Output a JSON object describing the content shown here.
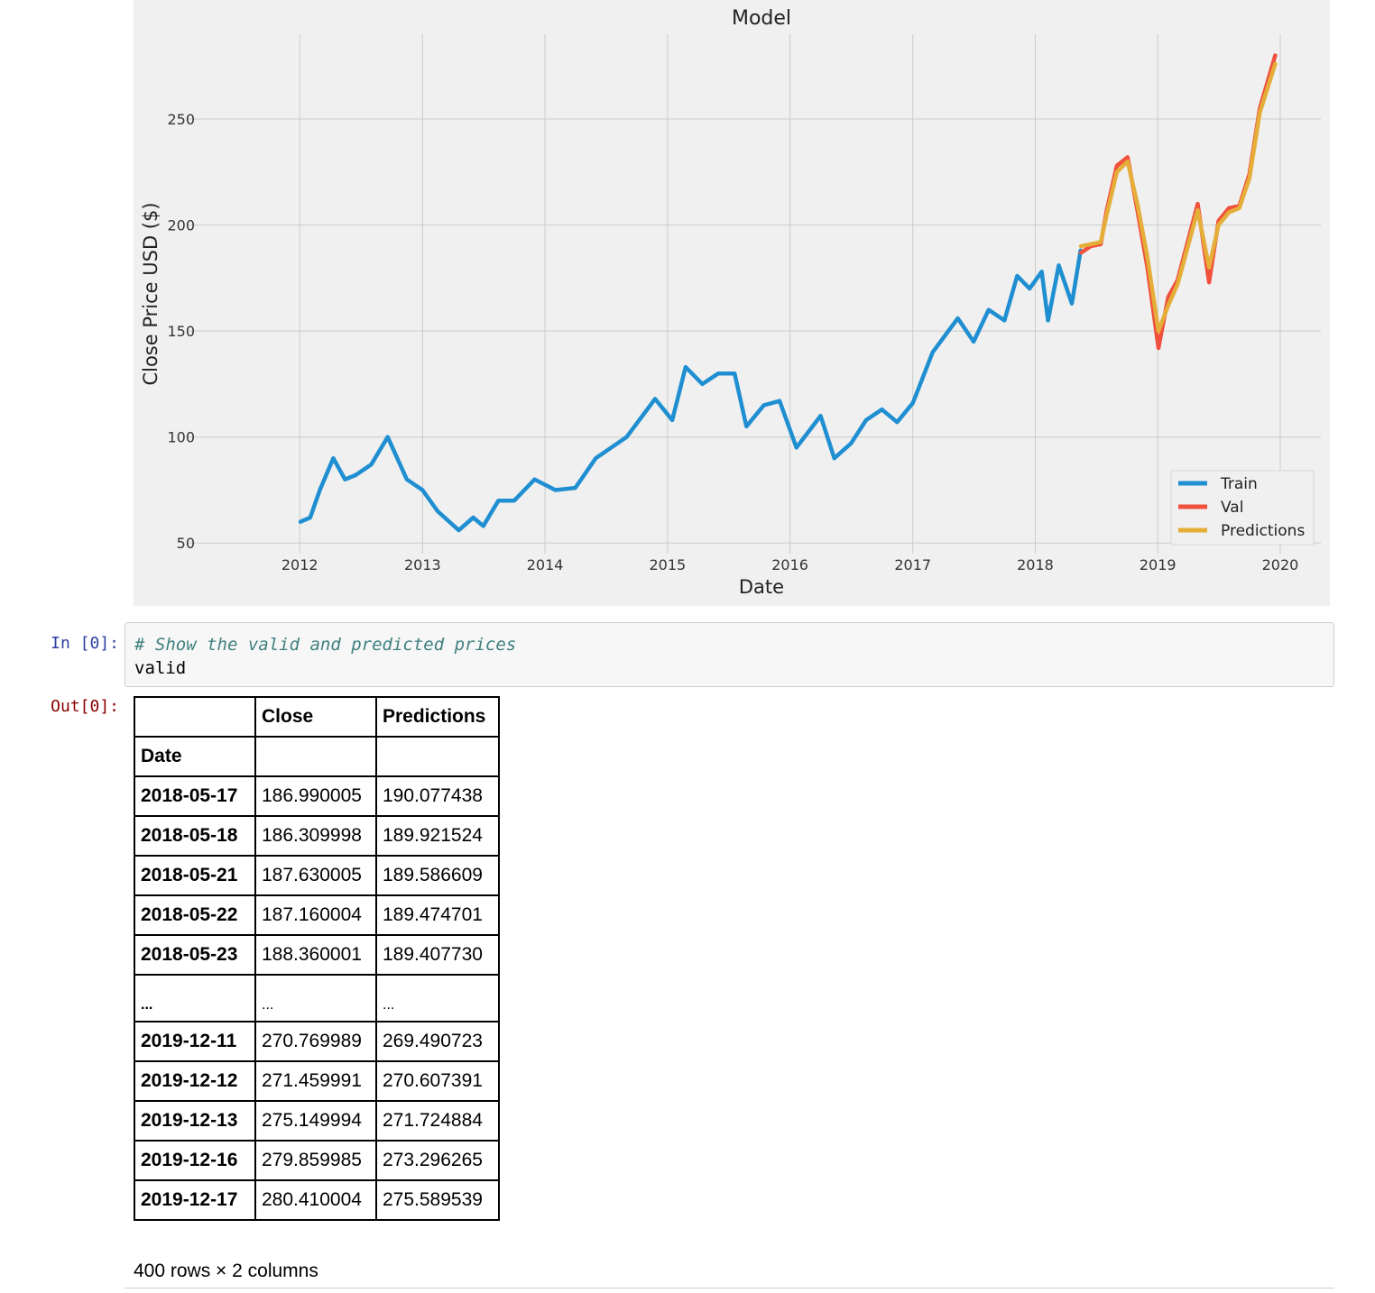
{
  "output_chart": {
    "chart_data": {
      "type": "line",
      "title": "Model",
      "xlabel": "Date",
      "ylabel": "Close Price USD ($)",
      "xlim": [
        "2011-02-01",
        "2020-05-01"
      ],
      "ylim": [
        45,
        290
      ],
      "x_ticks": [
        "2012",
        "2013",
        "2014",
        "2015",
        "2016",
        "2017",
        "2018",
        "2019",
        "2020"
      ],
      "y_ticks": [
        50,
        100,
        150,
        200,
        250
      ],
      "grid": true,
      "legend_position": "lower-right",
      "series": [
        {
          "name": "Train",
          "color": "#1f8fd1",
          "points": [
            [
              "2012-01-03",
              60
            ],
            [
              "2012-02-01",
              62
            ],
            [
              "2012-03-01",
              75
            ],
            [
              "2012-04-10",
              90
            ],
            [
              "2012-05-15",
              80
            ],
            [
              "2012-06-15",
              82
            ],
            [
              "2012-08-01",
              87
            ],
            [
              "2012-09-19",
              100
            ],
            [
              "2012-11-15",
              80
            ],
            [
              "2013-01-01",
              75
            ],
            [
              "2013-02-15",
              65
            ],
            [
              "2013-04-19",
              56
            ],
            [
              "2013-06-01",
              62
            ],
            [
              "2013-07-01",
              58
            ],
            [
              "2013-08-15",
              70
            ],
            [
              "2013-10-01",
              70
            ],
            [
              "2013-12-01",
              80
            ],
            [
              "2014-02-01",
              75
            ],
            [
              "2014-04-01",
              76
            ],
            [
              "2014-06-01",
              90
            ],
            [
              "2014-09-01",
              100
            ],
            [
              "2014-11-25",
              118
            ],
            [
              "2015-01-15",
              108
            ],
            [
              "2015-02-24",
              133
            ],
            [
              "2015-04-15",
              125
            ],
            [
              "2015-06-01",
              130
            ],
            [
              "2015-07-20",
              130
            ],
            [
              "2015-08-24",
              105
            ],
            [
              "2015-10-15",
              115
            ],
            [
              "2015-12-01",
              117
            ],
            [
              "2016-01-20",
              95
            ],
            [
              "2016-04-01",
              110
            ],
            [
              "2016-05-12",
              90
            ],
            [
              "2016-07-01",
              97
            ],
            [
              "2016-08-15",
              108
            ],
            [
              "2016-10-01",
              113
            ],
            [
              "2016-11-15",
              107
            ],
            [
              "2017-01-01",
              116
            ],
            [
              "2017-03-01",
              140
            ],
            [
              "2017-05-15",
              156
            ],
            [
              "2017-07-01",
              145
            ],
            [
              "2017-08-15",
              160
            ],
            [
              "2017-10-01",
              155
            ],
            [
              "2017-11-08",
              176
            ],
            [
              "2017-12-15",
              170
            ],
            [
              "2018-01-20",
              178
            ],
            [
              "2018-02-08",
              155
            ],
            [
              "2018-03-12",
              181
            ],
            [
              "2018-04-20",
              163
            ],
            [
              "2018-05-16",
              188
            ]
          ]
        },
        {
          "name": "Val",
          "color": "#f0503c",
          "points": [
            [
              "2018-05-17",
              187
            ],
            [
              "2018-06-15",
              190
            ],
            [
              "2018-07-15",
              191
            ],
            [
              "2018-08-02",
              207
            ],
            [
              "2018-09-01",
              228
            ],
            [
              "2018-10-03",
              232
            ],
            [
              "2018-11-01",
              207
            ],
            [
              "2018-12-01",
              180
            ],
            [
              "2019-01-03",
              142
            ],
            [
              "2019-02-01",
              166
            ],
            [
              "2019-03-01",
              174
            ],
            [
              "2019-04-30",
              210
            ],
            [
              "2019-06-03",
              173
            ],
            [
              "2019-07-01",
              202
            ],
            [
              "2019-08-01",
              208
            ],
            [
              "2019-09-01",
              209
            ],
            [
              "2019-10-01",
              224
            ],
            [
              "2019-11-01",
              255
            ],
            [
              "2019-12-17",
              280
            ]
          ]
        },
        {
          "name": "Predictions",
          "color": "#e5ae38",
          "points": [
            [
              "2018-05-17",
              190
            ],
            [
              "2018-06-15",
              191
            ],
            [
              "2018-07-15",
              192
            ],
            [
              "2018-08-02",
              205
            ],
            [
              "2018-09-01",
              225
            ],
            [
              "2018-10-03",
              230
            ],
            [
              "2018-11-01",
              210
            ],
            [
              "2018-12-01",
              185
            ],
            [
              "2019-01-03",
              150
            ],
            [
              "2019-02-01",
              162
            ],
            [
              "2019-03-01",
              172
            ],
            [
              "2019-04-30",
              207
            ],
            [
              "2019-06-03",
              180
            ],
            [
              "2019-07-01",
              200
            ],
            [
              "2019-08-01",
              206
            ],
            [
              "2019-09-01",
              208
            ],
            [
              "2019-10-01",
              222
            ],
            [
              "2019-11-01",
              253
            ],
            [
              "2019-12-17",
              276
            ]
          ]
        }
      ]
    }
  },
  "input_cell": {
    "prompt": "In [0]:",
    "comment": "# Show the valid and predicted prices",
    "code": "valid"
  },
  "output_cell": {
    "prompt": "Out[0]:"
  },
  "dataframe": {
    "columns": [
      "Close",
      "Predictions"
    ],
    "index_name": "Date",
    "ellipsis": "...",
    "rows_head": [
      {
        "date": "2018-05-17",
        "close": "186.990005",
        "pred": "190.077438"
      },
      {
        "date": "2018-05-18",
        "close": "186.309998",
        "pred": "189.921524"
      },
      {
        "date": "2018-05-21",
        "close": "187.630005",
        "pred": "189.586609"
      },
      {
        "date": "2018-05-22",
        "close": "187.160004",
        "pred": "189.474701"
      },
      {
        "date": "2018-05-23",
        "close": "188.360001",
        "pred": "189.407730"
      }
    ],
    "rows_tail": [
      {
        "date": "2019-12-11",
        "close": "270.769989",
        "pred": "269.490723"
      },
      {
        "date": "2019-12-12",
        "close": "271.459991",
        "pred": "270.607391"
      },
      {
        "date": "2019-12-13",
        "close": "275.149994",
        "pred": "271.724884"
      },
      {
        "date": "2019-12-16",
        "close": "279.859985",
        "pred": "273.296265"
      },
      {
        "date": "2019-12-17",
        "close": "280.410004",
        "pred": "275.589539"
      }
    ],
    "shape_text": "400 rows × 2 columns"
  }
}
